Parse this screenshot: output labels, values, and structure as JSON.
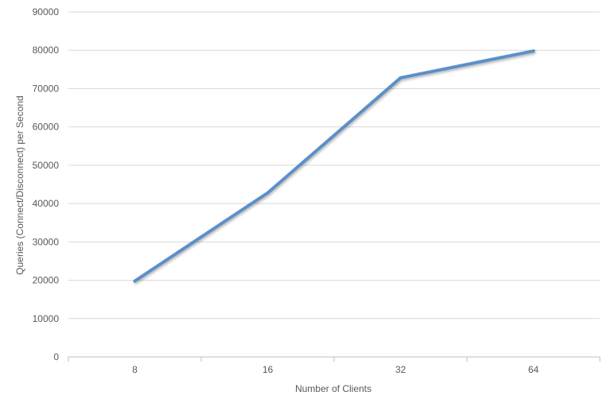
{
  "chart_data": {
    "type": "line",
    "title": "",
    "xlabel": "Number of Clients",
    "ylabel": "Queries (Connect/Disconnect) per Second",
    "categories": [
      "8",
      "16",
      "32",
      "64"
    ],
    "series": [
      {
        "values": [
          19800,
          42800,
          72800,
          79800
        ],
        "color": "#5b8fc9"
      }
    ],
    "ylim": [
      0,
      90000
    ],
    "yticks": [
      0,
      10000,
      20000,
      30000,
      40000,
      50000,
      60000,
      70000,
      80000,
      90000
    ],
    "grid": true,
    "legend": "none"
  }
}
